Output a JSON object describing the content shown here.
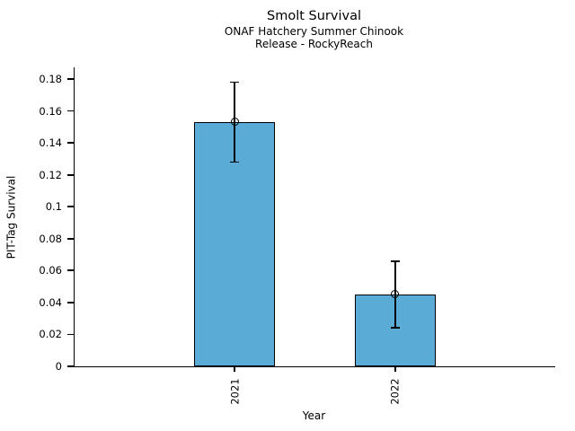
{
  "chart_data": {
    "type": "bar",
    "title": "Smolt Survival",
    "subtitle": [
      "ONAF Hatchery Summer Chinook",
      "Release - RockyReach"
    ],
    "categories": [
      "2021",
      "2022"
    ],
    "values": [
      0.153,
      0.045
    ],
    "error_low": [
      0.128,
      0.024
    ],
    "error_high": [
      0.178,
      0.066
    ],
    "xlabel": "Year",
    "ylabel": "PIT-Tag Survival",
    "ylim": [
      0,
      0.1873
    ],
    "yticks": [
      0,
      0.02,
      0.04,
      0.06,
      0.08,
      0.1,
      0.12,
      0.14,
      0.16,
      0.18
    ],
    "ytick_labels": [
      "0",
      "0.02",
      "0.04",
      "0.06",
      "0.08",
      "0.1",
      "0.12",
      "0.14",
      "0.16",
      "0.18"
    ],
    "xtick_label_rotation_deg": 90,
    "grid": false,
    "legend": null,
    "bar_color": "#5AACD6",
    "bar_edge_color": "#000000",
    "error_bar_color": "#000000",
    "marker": "open-circle",
    "axis_color": "#000000",
    "background_color": "#ffffff"
  }
}
